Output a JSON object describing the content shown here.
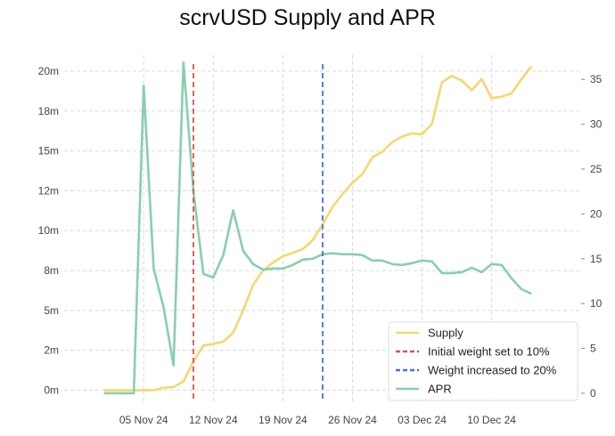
{
  "chart_data": {
    "type": "line",
    "title": "scrvUSD Supply and APR",
    "x_dates": [
      "2024-11-01",
      "2024-11-02",
      "2024-11-03",
      "2024-11-04",
      "2024-11-05",
      "2024-11-06",
      "2024-11-07",
      "2024-11-08",
      "2024-11-09",
      "2024-11-10",
      "2024-11-11",
      "2024-11-12",
      "2024-11-13",
      "2024-11-14",
      "2024-11-15",
      "2024-11-16",
      "2024-11-17",
      "2024-11-18",
      "2024-11-19",
      "2024-11-20",
      "2024-11-21",
      "2024-11-22",
      "2024-11-23",
      "2024-11-24",
      "2024-11-25",
      "2024-11-26",
      "2024-11-27",
      "2024-11-28",
      "2024-11-29",
      "2024-11-30",
      "2024-12-01",
      "2024-12-02",
      "2024-12-03",
      "2024-12-04",
      "2024-12-05",
      "2024-12-06",
      "2024-12-07",
      "2024-12-08",
      "2024-12-09",
      "2024-12-10",
      "2024-12-11",
      "2024-12-12",
      "2024-12-13",
      "2024-12-14"
    ],
    "x_ticks": [
      "05 Nov 24",
      "12 Nov 24",
      "19 Nov 24",
      "26 Nov 24",
      "03 Dec 24",
      "10 Dec 24"
    ],
    "y_left_ticks": [
      "0m",
      "2m",
      "5m",
      "8m",
      "10m",
      "12m",
      "15m",
      "18m",
      "20m"
    ],
    "y_right_ticks": [
      "0",
      "5",
      "10",
      "15",
      "20",
      "25",
      "30",
      "35"
    ],
    "y_left_range": [
      -0.75,
      21.0
    ],
    "y_right_range": [
      -1.0,
      37.7
    ],
    "series": [
      {
        "name": "Supply",
        "axis": "left",
        "color": "#f5d76e",
        "values": [
          0,
          0,
          0,
          0,
          0,
          0,
          0.15,
          0.2,
          0.55,
          1.8,
          2.8,
          2.9,
          3.05,
          3.6,
          5.0,
          6.6,
          7.5,
          8.0,
          8.4,
          8.6,
          8.85,
          9.4,
          10.4,
          11.5,
          12.3,
          13.0,
          13.55,
          14.6,
          14.95,
          15.55,
          15.9,
          16.1,
          16.05,
          16.7,
          19.3,
          19.7,
          19.4,
          18.8,
          19.5,
          18.3,
          18.4,
          18.6,
          19.5,
          20.3
        ]
      },
      {
        "name": "APR",
        "axis": "right",
        "color": "#88cfad",
        "values": [
          0,
          0,
          0,
          0,
          34.3,
          13.9,
          9.6,
          3.1,
          36.9,
          22.5,
          13.3,
          12.9,
          15.4,
          20.4,
          15.9,
          14.4,
          13.8,
          13.9,
          13.9,
          14.3,
          14.9,
          15.0,
          15.5,
          15.6,
          15.5,
          15.5,
          15.4,
          14.8,
          14.8,
          14.4,
          14.3,
          14.5,
          14.8,
          14.7,
          13.4,
          13.4,
          13.5,
          14.0,
          13.5,
          14.4,
          14.3,
          12.8,
          11.6,
          11.1
        ]
      }
    ],
    "vlines": [
      {
        "name": "Initial weight set to 10%",
        "date": "2024-11-10",
        "color": "#d9534f"
      },
      {
        "name": "Weight increased to 20%",
        "date": "2024-11-23",
        "color": "#4a6fdc"
      }
    ],
    "legend": [
      "Supply",
      "Initial weight set to 10%",
      "Weight increased to 20%",
      "APR"
    ],
    "legend_position": "bottom-right",
    "grid": true
  }
}
